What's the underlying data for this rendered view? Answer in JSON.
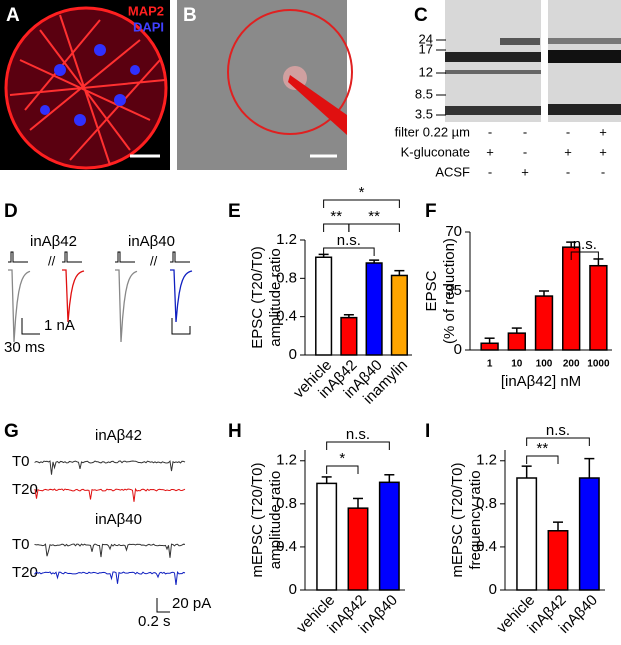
{
  "panels": {
    "A": {
      "letter": "A",
      "stains": [
        "MAP2",
        "DAPI"
      ]
    },
    "B": {
      "letter": "B"
    },
    "C": {
      "letter": "C",
      "markers": [
        24,
        17,
        12,
        8.5,
        3.5
      ],
      "rows": [
        {
          "label": "filter 0.22 µm",
          "cells": [
            "-",
            "-",
            "-",
            "+"
          ]
        },
        {
          "label": "K-gluconate",
          "cells": [
            "+",
            "-",
            "+",
            "+"
          ]
        },
        {
          "label": "ACSF",
          "cells": [
            "-",
            "+",
            "-",
            "-"
          ]
        }
      ]
    },
    "D": {
      "letter": "D",
      "conditions": [
        "inAβ42",
        "inAβ40"
      ],
      "scale": [
        "1 nA",
        "30 ms"
      ]
    },
    "G": {
      "letter": "G",
      "conditions": [
        "inAβ42",
        "inAβ40"
      ],
      "times": [
        "T0",
        "T20"
      ],
      "scale": [
        "20 pA",
        "0.2 s"
      ]
    }
  },
  "chart_data": [
    {
      "type": "bar",
      "panel": "E",
      "ylabel": [
        "EPSC (T20/T0)",
        "amplitude ratio"
      ],
      "categories": [
        "vehicle",
        "inAβ42",
        "inAβ40",
        "inamylin"
      ],
      "values": [
        1.02,
        0.39,
        0.96,
        0.83
      ],
      "errors": [
        0.03,
        0.03,
        0.03,
        0.05
      ],
      "colors": [
        "#ffffff",
        "#ff0000",
        "#0000ff",
        "#ffa500"
      ],
      "ylim": [
        0,
        1.2
      ],
      "yticks": [
        0,
        0.4,
        0.8,
        1.2
      ],
      "annotations": [
        "**",
        "n.s.",
        "**",
        "*"
      ]
    },
    {
      "type": "bar",
      "panel": "F",
      "ylabel": [
        "EPSC",
        "(% of reduction)"
      ],
      "xlabel": "[inAβ42] nM",
      "categories": [
        "1",
        "10",
        "100",
        "200",
        "1000"
      ],
      "values": [
        4,
        10,
        32,
        61,
        50
      ],
      "errors": [
        3,
        3,
        3,
        3,
        4
      ],
      "colors": [
        "#ff0000",
        "#ff0000",
        "#ff0000",
        "#ff0000",
        "#ff0000"
      ],
      "ylim": [
        0,
        70
      ],
      "yticks": [
        0,
        35,
        70
      ],
      "annotations": [
        "n.s."
      ]
    },
    {
      "type": "bar",
      "panel": "H",
      "ylabel": [
        "mEPSC (T20/T0)",
        "amplitude ratio"
      ],
      "categories": [
        "vehicle",
        "inAβ42",
        "inAβ40"
      ],
      "values": [
        0.99,
        0.76,
        1.0
      ],
      "errors": [
        0.06,
        0.09,
        0.07
      ],
      "colors": [
        "#ffffff",
        "#ff0000",
        "#0000ff"
      ],
      "ylim": [
        0,
        1.3
      ],
      "yticks": [
        0,
        0.4,
        0.8,
        1.2
      ],
      "annotations": [
        "*",
        "n.s."
      ]
    },
    {
      "type": "bar",
      "panel": "I",
      "ylabel": [
        "mEPSC (T20/T0)",
        "frequency ratio"
      ],
      "categories": [
        "vehicle",
        "inAβ42",
        "inAβ40"
      ],
      "values": [
        1.04,
        0.55,
        1.04
      ],
      "errors": [
        0.11,
        0.08,
        0.18
      ],
      "colors": [
        "#ffffff",
        "#ff0000",
        "#0000ff"
      ],
      "ylim": [
        0,
        1.3
      ],
      "yticks": [
        0,
        0.4,
        0.8,
        1.2
      ],
      "annotations": [
        "**",
        "n.s."
      ]
    }
  ]
}
